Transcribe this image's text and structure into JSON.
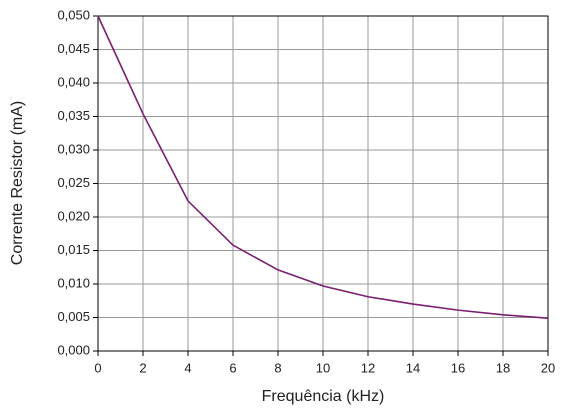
{
  "chart_data": {
    "type": "line",
    "x_label": "Frequência (kHz)",
    "y_label": "Corrente Resistor (mA)",
    "x": [
      0,
      2,
      4,
      6,
      8,
      10,
      12,
      14,
      16,
      18,
      20
    ],
    "values": [
      0.05,
      0.0354,
      0.0224,
      0.0158,
      0.0121,
      0.0097,
      0.0081,
      0.007,
      0.0061,
      0.0054,
      0.0049
    ],
    "color": "#7a1f6e",
    "xlim": [
      0,
      20
    ],
    "xticks": [
      0,
      2,
      4,
      6,
      8,
      10,
      12,
      14,
      16,
      18,
      20
    ],
    "ylim": [
      0,
      0.05
    ],
    "yticks": [
      {
        "value": 0,
        "label": "0,000"
      },
      {
        "value": 0.005,
        "label": "0,005"
      },
      {
        "value": 0.01,
        "label": "0,010"
      },
      {
        "value": 0.015,
        "label": "0,015"
      },
      {
        "value": 0.02,
        "label": "0,020"
      },
      {
        "value": 0.025,
        "label": "0,025"
      },
      {
        "value": 0.03,
        "label": "0,030"
      },
      {
        "value": 0.035,
        "label": "0,035"
      },
      {
        "value": 0.04,
        "label": "0,040"
      },
      {
        "value": 0.045,
        "label": "0,045"
      },
      {
        "value": 0.05,
        "label": "0,050"
      }
    ],
    "grid": true
  }
}
